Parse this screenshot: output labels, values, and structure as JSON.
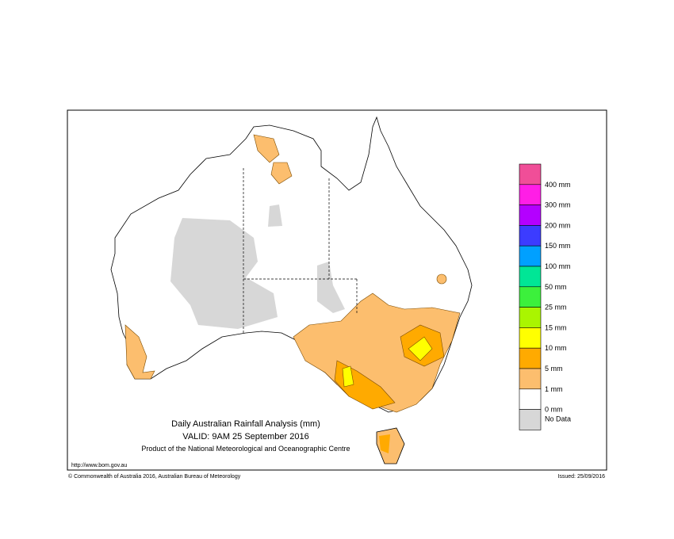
{
  "map": {
    "title": "Daily Australian Rainfall Analysis (mm)",
    "valid": "VALID: 9AM 25 September 2016",
    "product": "Product of the National Meteorological and Oceanographic Centre",
    "url": "http://www.bom.gov.au",
    "copyright": "© Commonwealth of Australia 2016, Australian Bureau of Meteorology",
    "issued": "Issued: 25/09/2016",
    "legend": {
      "labels": [
        "400 mm",
        "300 mm",
        "200 mm",
        "150 mm",
        "100 mm",
        "50 mm",
        "25 mm",
        "15 mm",
        "10 mm",
        "5 mm",
        "1 mm",
        "0 mm",
        "No Data"
      ],
      "colors": [
        "#f04e98",
        "#ff1ee6",
        "#b400ff",
        "#3c3cff",
        "#00a0ff",
        "#00e696",
        "#3cf03c",
        "#aaf500",
        "#ffff00",
        "#ffaa00",
        "#fcbe6e",
        "#ffffff",
        "#d7d7d7"
      ]
    }
  }
}
